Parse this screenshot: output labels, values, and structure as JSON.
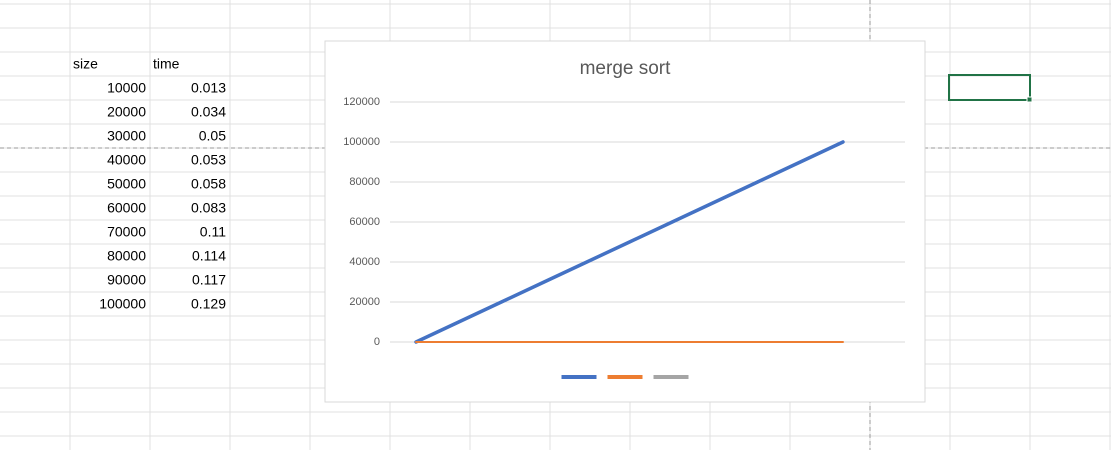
{
  "table": {
    "header": [
      "size",
      "time"
    ],
    "rows": [
      [
        "10000",
        "0.013"
      ],
      [
        "20000",
        "0.034"
      ],
      [
        "30000",
        "0.05"
      ],
      [
        "40000",
        "0.053"
      ],
      [
        "50000",
        "0.058"
      ],
      [
        "60000",
        "0.083"
      ],
      [
        "70000",
        "0.11"
      ],
      [
        "80000",
        "0.114"
      ],
      [
        "90000",
        "0.117"
      ],
      [
        "100000",
        "0.129"
      ]
    ]
  },
  "chart_data": {
    "type": "line",
    "title": "merge sort",
    "categories": [
      null,
      null,
      null,
      null,
      null,
      null,
      null,
      null,
      null,
      null,
      null
    ],
    "series": [
      {
        "color": "#4472c4",
        "values": [
          0,
          10000,
          20000,
          30000,
          40000,
          50000,
          60000,
          70000,
          80000,
          90000,
          100000
        ]
      },
      {
        "color": "#ed7d31",
        "values": [
          0,
          0.013,
          0.034,
          0.05,
          0.053,
          0.058,
          0.083,
          0.11,
          0.114,
          0.117,
          0.129
        ]
      },
      {
        "color": "#a5a5a5",
        "values": [
          null,
          null,
          null,
          null,
          null,
          null,
          null,
          null,
          null,
          null,
          null
        ]
      }
    ],
    "ylim": [
      0,
      120000
    ],
    "yticks": [
      0,
      20000,
      40000,
      60000,
      80000,
      100000,
      120000
    ],
    "grid": true,
    "legend": "bottom"
  }
}
